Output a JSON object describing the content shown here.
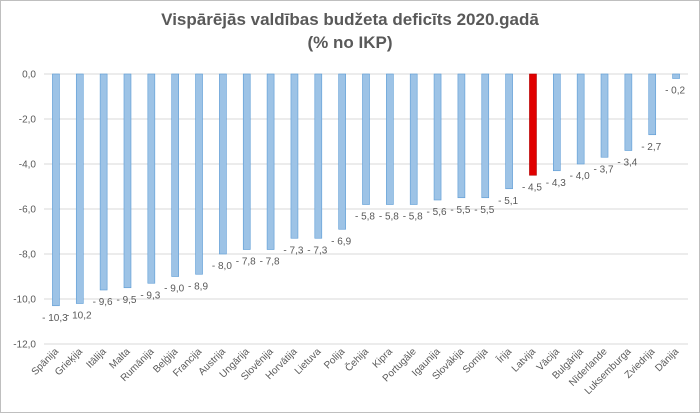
{
  "chart_data": {
    "type": "bar",
    "title": "Vispārējās valdības budžeta deficīts 2020.gadā",
    "subtitle": "(% no IKP)",
    "xlabel": "",
    "ylabel": "",
    "ylim": [
      -12,
      0
    ],
    "yticks": [
      "0,0",
      "-2,0",
      "-4,0",
      "-6,0",
      "-8,0",
      "-10,0",
      "-12,0"
    ],
    "ytick_values": [
      0,
      -2,
      -4,
      -6,
      -8,
      -10,
      -12
    ],
    "grid": true,
    "categories": [
      "Spānija",
      "Grieķija",
      "Itālija",
      "Malta",
      "Rumānija",
      "Beļģija",
      "Francija",
      "Austrija",
      "Ungārija",
      "Slovēnija",
      "Horvātija",
      "Lietuva",
      "Polija",
      "Čehija",
      "Kipra",
      "Portugāle",
      "Igaunija",
      "Slovākija",
      "Somija",
      "Īrija",
      "Latvija",
      "Vācija",
      "Bulgārija",
      "Nīderlande",
      "Luksemburga",
      "Zviedrija",
      "Dānija"
    ],
    "values": [
      -10.3,
      -10.2,
      -9.6,
      -9.5,
      -9.3,
      -9.0,
      -8.9,
      -8.0,
      -7.8,
      -7.8,
      -7.3,
      -7.3,
      -6.9,
      -5.8,
      -5.8,
      -5.8,
      -5.6,
      -5.5,
      -5.5,
      -5.1,
      -4.5,
      -4.3,
      -4.0,
      -3.7,
      -3.4,
      -2.7,
      -0.2
    ],
    "data_labels": [
      "- 10,3",
      "- 10,2",
      "- 9,6",
      "- 9,5",
      "- 9,3",
      "- 9,0",
      "- 8,9",
      "- 8,0",
      "- 7,8",
      "- 7,8",
      "- 7,3",
      "- 7,3",
      "- 6,9",
      "- 5,8",
      "- 5,8",
      "- 5,8",
      "- 5,6",
      "- 5,5",
      "- 5,5",
      "- 5,1",
      "- 4,5",
      "- 4,3",
      "- 4,0",
      "- 3,7",
      "- 3,4",
      "- 2,7",
      "- 0,2"
    ],
    "highlight": "Latvija",
    "colors": {
      "bar": "#9dc3e6",
      "bar_edge": "#5b9bd5",
      "highlight": "#e00000",
      "grid": "#d9d9d9",
      "text": "#595959"
    }
  }
}
